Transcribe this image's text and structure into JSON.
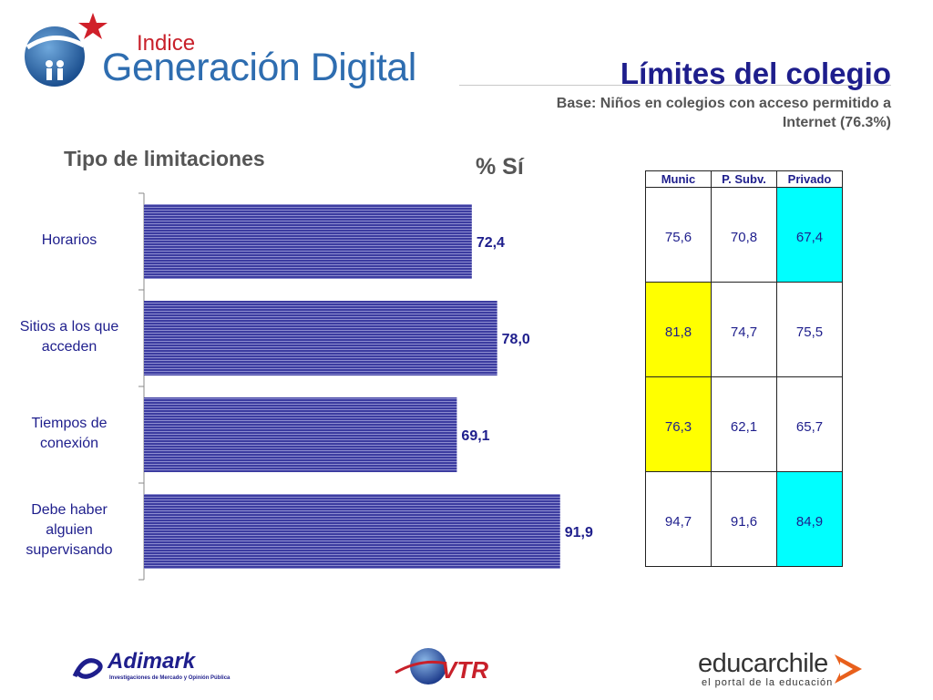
{
  "header": {
    "logo_small": "Indice",
    "logo_big": "Generación Digital",
    "title": "Límites del colegio",
    "subtitle": "Base: Niños en colegios con acceso permitido a Internet (76.3%)"
  },
  "chart_data": {
    "type": "bar",
    "orientation": "horizontal",
    "title": "Tipo de limitaciones",
    "unit_label": "% Sí",
    "categories": [
      "Horarios",
      "Sitios a los que acceden",
      "Tiempos de conexión",
      "Debe haber alguien supervisando"
    ],
    "category_lines": [
      [
        "Horarios"
      ],
      [
        "Sitios a los que",
        "acceden"
      ],
      [
        "Tiempos de",
        "conexión"
      ],
      [
        "Debe haber",
        "alguien",
        "supervisando"
      ]
    ],
    "values": [
      72.4,
      78.0,
      69.1,
      91.9
    ],
    "value_labels": [
      "72,4",
      "78,0",
      "69,1",
      "91,9"
    ],
    "xlim": [
      0,
      100
    ],
    "bar_color": "#3c3ca0",
    "grid": false
  },
  "table": {
    "columns": [
      "Munic",
      "P. Subv.",
      "Privado"
    ],
    "rows": [
      [
        "75,6",
        "70,8",
        "67,4"
      ],
      [
        "81,8",
        "74,7",
        "75,5"
      ],
      [
        "76,3",
        "62,1",
        "65,7"
      ],
      [
        "94,7",
        "91,6",
        "84,9"
      ]
    ],
    "highlights": {
      "yellow": [
        [
          1,
          0
        ],
        [
          2,
          0
        ]
      ],
      "cyan": [
        [
          0,
          2
        ],
        [
          3,
          2
        ]
      ]
    },
    "colors": {
      "yellow": "#ffff00",
      "cyan": "#00ffff"
    }
  },
  "footer": {
    "adimark": "Adimark",
    "adimark_tagline": "Investigaciones de Mercado y Opinión Pública",
    "vtr": "VTR",
    "educar": "educarchile",
    "educar_tagline": "el portal de la educación"
  }
}
